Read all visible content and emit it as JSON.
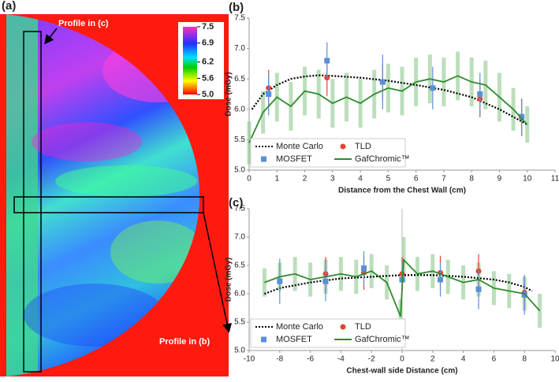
{
  "chart_data": [
    {
      "type": "heatmap",
      "label": "(a)",
      "annotations": [
        "Profile in (c)",
        "Profile in (b)"
      ],
      "colorbar": {
        "lim": [
          5.0,
          7.5
        ],
        "ticks": [
          {
            "value": 7.5,
            "label": "7.5"
          },
          6.9,
          6.2,
          5.6,
          {
            "value": 5.0,
            "label": "5.0"
          }
        ]
      }
    },
    {
      "type": "line",
      "label": "(b)",
      "x_label": "Distance from the Chest Wall (cm)",
      "y_label": "Dose (mGy)",
      "xlim": [
        0,
        11
      ],
      "xticks": [
        0,
        1,
        2,
        3,
        4,
        5,
        6,
        7,
        8,
        9,
        10,
        11
      ],
      "ylim": [
        5.0,
        7.5
      ],
      "yticks": [
        {
          "value": 5.0,
          "label": "5.0"
        },
        5.5,
        {
          "value": 6.0,
          "label": "6.0"
        },
        6.5,
        {
          "value": 7.0,
          "label": "7.0"
        },
        7.5
      ],
      "legend": "lower left",
      "series": [
        {
          "name": "Monte Carlo",
          "kind": "line",
          "style": "dotted",
          "color": "#000000",
          "x": [
            0.1,
            0.5,
            1,
            1.5,
            2,
            2.5,
            3,
            4,
            5,
            6,
            7,
            8,
            9,
            10
          ],
          "values": [
            6.0,
            6.25,
            6.4,
            6.5,
            6.54,
            6.56,
            6.55,
            6.52,
            6.47,
            6.4,
            6.32,
            6.2,
            6.0,
            5.75
          ]
        },
        {
          "name": "TLD",
          "kind": "points",
          "marker": "circle",
          "color": "#e8412b",
          "x": [
            0.7,
            2.8,
            4.8,
            8.3,
            9.8
          ],
          "values": [
            6.35,
            6.52,
            6.45,
            6.17,
            5.86
          ],
          "errors": [
            0.3,
            0.3,
            0.3,
            0.3,
            0.3
          ]
        },
        {
          "name": "MOSFET",
          "kind": "points",
          "marker": "square",
          "color": "#5b8fd6",
          "x": [
            0.7,
            2.8,
            4.8,
            6.6,
            8.3,
            9.8
          ],
          "values": [
            6.25,
            6.8,
            6.45,
            6.35,
            6.25,
            5.88
          ],
          "errors": [
            0.35,
            0.3,
            0.45,
            0.35,
            0.35,
            0.3
          ]
        },
        {
          "name": "GafChromic™",
          "kind": "line",
          "style": "solid",
          "color": "#2e8b2e",
          "error_color": "#8fc98f",
          "x": [
            0,
            0.5,
            1,
            1.5,
            2,
            2.5,
            3,
            3.5,
            4,
            4.5,
            5,
            5.5,
            6,
            6.5,
            7,
            7.5,
            8,
            8.5,
            9,
            9.5,
            10
          ],
          "values": [
            5.45,
            5.95,
            6.2,
            6.05,
            6.3,
            6.25,
            6.1,
            6.2,
            6.1,
            6.25,
            6.35,
            6.3,
            6.45,
            6.5,
            6.45,
            6.55,
            6.45,
            6.4,
            6.2,
            6.0,
            5.75
          ],
          "errors": [
            0.35,
            0.35,
            0.4,
            0.4,
            0.4,
            0.4,
            0.4,
            0.4,
            0.4,
            0.4,
            0.4,
            0.4,
            0.4,
            0.4,
            0.4,
            0.4,
            0.4,
            0.4,
            0.4,
            0.35,
            0.3
          ]
        }
      ]
    },
    {
      "type": "line",
      "label": "(c)",
      "x_label": "Chest-wall side Distance (cm)",
      "y_label": "Dose (mGy)",
      "xlim": [
        -10,
        10
      ],
      "xticks": [
        -10,
        -8,
        -6,
        -4,
        -2,
        0,
        2,
        4,
        6,
        8,
        10
      ],
      "ylim": [
        5.0,
        7.5
      ],
      "yticks": [
        {
          "value": 5.0,
          "label": "5.0"
        },
        5.5,
        {
          "value": 6.0,
          "label": "6.0"
        },
        6.5,
        {
          "value": 7.0,
          "label": "7.0"
        },
        7.5
      ],
      "legend": "lower left",
      "series": [
        {
          "name": "Monte Carlo",
          "kind": "line",
          "style": "dotted",
          "color": "#000000",
          "x": [
            -9,
            -8,
            -6,
            -4,
            -2,
            0,
            2,
            4,
            6,
            7,
            8,
            8.5
          ],
          "values": [
            6.0,
            6.1,
            6.2,
            6.27,
            6.3,
            6.33,
            6.33,
            6.3,
            6.25,
            6.2,
            6.12,
            6.05
          ]
        },
        {
          "name": "TLD",
          "kind": "points",
          "marker": "circle",
          "color": "#e8412b",
          "x": [
            -5,
            -2.5,
            0,
            2.5,
            5,
            8
          ],
          "values": [
            6.35,
            6.37,
            6.35,
            6.37,
            6.4,
            6.02
          ],
          "errors": [
            0.3,
            0.3,
            0.3,
            0.3,
            0.3,
            0.3
          ]
        },
        {
          "name": "MOSFET",
          "kind": "points",
          "marker": "square",
          "color": "#5b8fd6",
          "x": [
            -8,
            -5,
            -2.5,
            0,
            2.5,
            5,
            8
          ],
          "values": [
            6.22,
            6.22,
            6.45,
            6.25,
            6.25,
            6.08,
            5.98
          ],
          "errors": [
            0.4,
            0.35,
            0.3,
            0.3,
            0.3,
            0.35,
            0.35
          ]
        },
        {
          "name": "GafChromic™",
          "kind": "line",
          "style": "solid",
          "color": "#2e8b2e",
          "error_color": "#8fc98f",
          "x": [
            -9,
            -8,
            -7,
            -6,
            -5,
            -4,
            -3,
            -2,
            -1,
            -0.1,
            0.1,
            1,
            2,
            3,
            4,
            5,
            6,
            7,
            8,
            9
          ],
          "values": [
            6.2,
            6.3,
            6.35,
            6.25,
            6.3,
            6.35,
            6.3,
            6.4,
            6.2,
            5.6,
            6.6,
            6.35,
            6.4,
            6.3,
            6.2,
            6.25,
            6.1,
            6.05,
            6.0,
            5.7
          ],
          "errors": [
            0.25,
            0.25,
            0.3,
            0.3,
            0.3,
            0.3,
            0.3,
            0.3,
            0.3,
            0.3,
            0.4,
            0.3,
            0.3,
            0.3,
            0.3,
            0.3,
            0.3,
            0.3,
            0.3,
            0.3
          ]
        }
      ]
    }
  ]
}
